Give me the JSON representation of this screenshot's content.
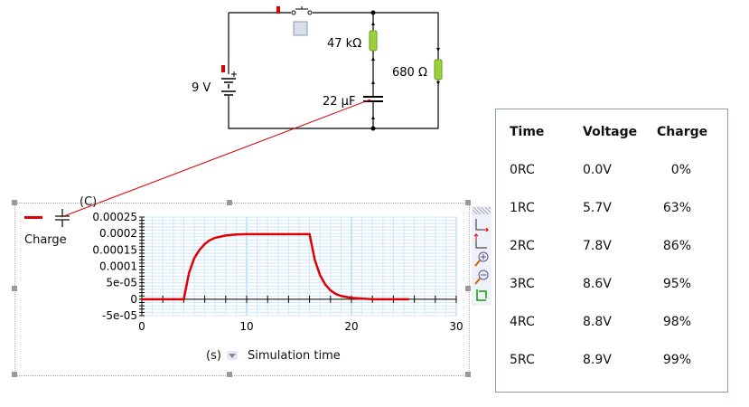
{
  "circuit": {
    "battery_label": "9 V",
    "resistor1_label": "47 kΩ",
    "resistor2_label": "680 Ω",
    "capacitor_label": "22 µF",
    "component_color": "#9ad13a",
    "probe_color": "#e00000"
  },
  "graph": {
    "legend_label": "Charge",
    "unit_label": "(C)",
    "x_unit": "(s)",
    "x_quantity": "Simulation time",
    "toolbar_icons": [
      "x-axis-scale-icon",
      "y-axis-scale-icon",
      "zoom-in-icon",
      "zoom-out-icon",
      "fit-icon"
    ]
  },
  "chart_data": {
    "type": "line",
    "xlim": [
      0,
      30
    ],
    "ylim": [
      -5e-05,
      0.00025
    ],
    "x_ticks": [
      "0",
      "10",
      "20",
      "30"
    ],
    "y_ticks": [
      "0.00025",
      "0.0002",
      "0.00015",
      "0.0001",
      "5e-05",
      "0",
      "-5e-05"
    ],
    "grid": true,
    "series": [
      {
        "name": "Charge",
        "color": "#e00000",
        "x": [
          0,
          4,
          4.5,
          5,
          5.5,
          6,
          6.5,
          7,
          8,
          9,
          10,
          12,
          14,
          16,
          16.5,
          17,
          17.5,
          18,
          18.5,
          19,
          20,
          21,
          22,
          25.5
        ],
        "y": [
          0,
          0,
          8e-05,
          0.000125,
          0.00015,
          0.000168,
          0.00018,
          0.000187,
          0.000194,
          0.000197,
          0.000198,
          0.000198,
          0.000198,
          0.000198,
          0.00012,
          7.3e-05,
          4.5e-05,
          2.7e-05,
          1.6e-05,
          1e-05,
          4e-06,
          2e-06,
          0,
          0
        ]
      }
    ]
  },
  "table": {
    "headers": [
      "Time",
      "Voltage",
      "Charge"
    ],
    "rows": [
      [
        "0RC",
        "0.0V",
        "0%"
      ],
      [
        "1RC",
        "5.7V",
        "63%"
      ],
      [
        "2RC",
        "7.8V",
        "86%"
      ],
      [
        "3RC",
        "8.6V",
        "95%"
      ],
      [
        "4RC",
        "8.8V",
        "98%"
      ],
      [
        "5RC",
        "8.9V",
        "99%"
      ]
    ]
  }
}
